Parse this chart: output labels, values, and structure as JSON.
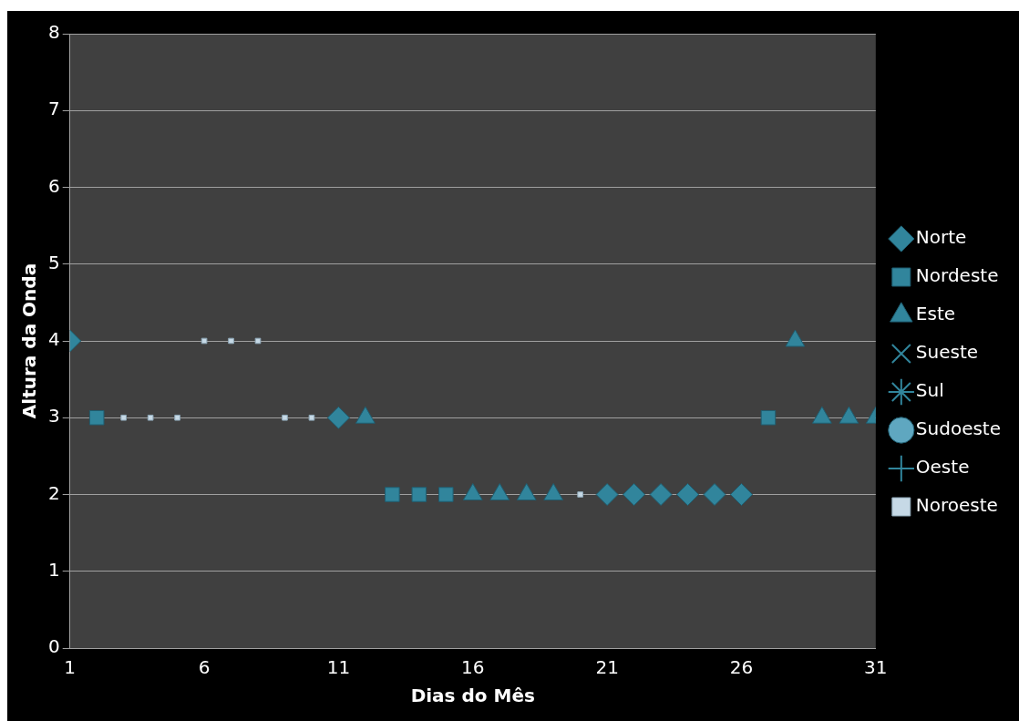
{
  "chart_data": {
    "type": "scatter",
    "xlabel": "Dias do Mês",
    "ylabel": "Altura da Onda",
    "xlim": [
      1,
      31
    ],
    "xticks": [
      1,
      6,
      11,
      16,
      21,
      26,
      31
    ],
    "ylim": [
      0,
      8
    ],
    "yticks": [
      0,
      1,
      2,
      3,
      4,
      5,
      6,
      7,
      8
    ],
    "grid": "y",
    "legend": "right",
    "series": [
      {
        "name": "Norte",
        "color": "#31859c",
        "marker": "diamond",
        "x": [
          1,
          11,
          21,
          22,
          23,
          24,
          25,
          26
        ],
        "values": [
          4,
          3,
          2,
          2,
          2,
          2,
          2,
          2
        ]
      },
      {
        "name": "Nordeste",
        "color": "#31859c",
        "marker": "square",
        "x": [
          2,
          13,
          14,
          15,
          27
        ],
        "values": [
          3,
          2,
          2,
          2,
          3
        ]
      },
      {
        "name": "Este",
        "color": "#31859c",
        "marker": "triangle",
        "x": [
          12,
          16,
          17,
          18,
          19,
          28,
          29,
          30,
          31
        ],
        "values": [
          3,
          2,
          2,
          2,
          2,
          4,
          3,
          3,
          3
        ]
      },
      {
        "name": "Sueste",
        "color": "#31859c",
        "marker": "x"
      },
      {
        "name": "Sul",
        "color": "#31859c",
        "marker": "star"
      },
      {
        "name": "Sudoeste",
        "color": "#5fa7c0",
        "marker": "circle"
      },
      {
        "name": "Oeste",
        "color": "#31859c",
        "marker": "cross"
      },
      {
        "name": "Noroeste",
        "color": "#c6d9e6",
        "marker": "square",
        "x": [
          3,
          4,
          5,
          6,
          7,
          8,
          9,
          10,
          20
        ],
        "values": [
          3,
          3,
          3,
          4,
          4,
          4,
          3,
          3,
          2
        ]
      }
    ]
  }
}
